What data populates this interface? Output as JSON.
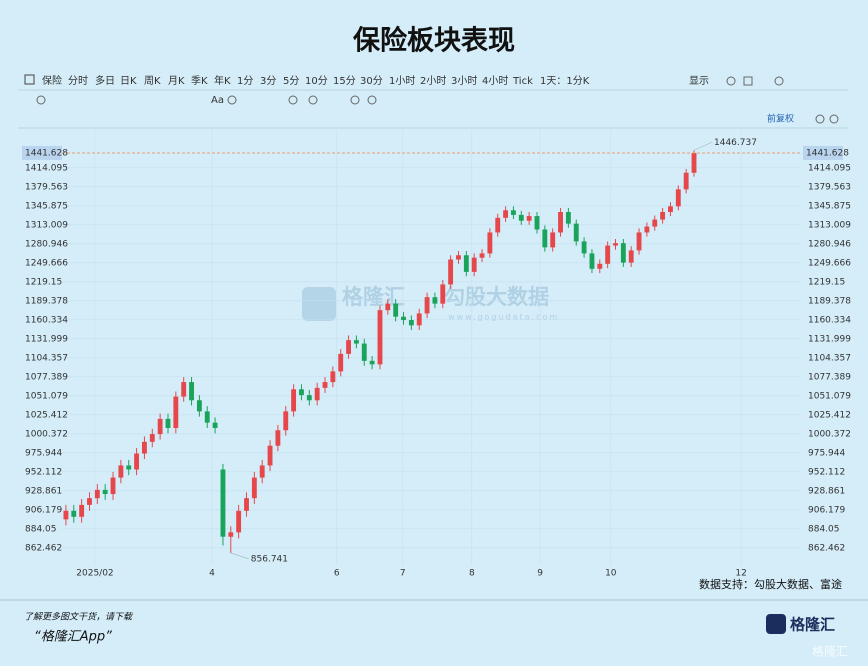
{
  "title": "保险板块表现",
  "toolbar": [
    "保险",
    "分时",
    "多日",
    "日K",
    "周K",
    "月K",
    "季K",
    "年K",
    "1分",
    "3分",
    "5分",
    "10分",
    "15分",
    "30分",
    "1小时",
    "2小时",
    "3小时",
    "4小时",
    "Tick",
    "1天：1分K"
  ],
  "toolbar_right": "显示",
  "toolbar2_text": "Aa",
  "adjust_label": "前复权",
  "watermark": {
    "brand": "格隆汇",
    "sub": "勾股大数据",
    "url": "www.gogudata.com"
  },
  "source": "数据支持：勾股大数据、富途",
  "footer": {
    "line1": "了解更多图文干货，请下载",
    "line2": "“格隆汇App”",
    "logo": "格隆汇",
    "corner": "格隆汇"
  },
  "chart_data": {
    "type": "candlestick",
    "log_scale": true,
    "grid": true,
    "up_color": "#e5474b",
    "down_color": "#1aa35a",
    "price_line_color": "#e8a070",
    "current_price": 1441.628,
    "annotations": [
      {
        "text": "1446.737",
        "index": 80
      },
      {
        "text": "856.741",
        "index": 21
      }
    ],
    "xlim": [
      -0.5,
      93.5
    ],
    "xticks": [
      {
        "value": 3.7,
        "label": "2025/02"
      },
      {
        "value": 18.6,
        "label": "4"
      },
      {
        "value": 34.5,
        "label": "6"
      },
      {
        "value": 42.9,
        "label": "7"
      },
      {
        "value": 51.7,
        "label": "8"
      },
      {
        "value": 60.4,
        "label": "9"
      },
      {
        "value": 69.4,
        "label": "10"
      },
      {
        "value": 86,
        "label": "12"
      }
    ],
    "ylim": [
      850,
      1470
    ],
    "yticks": [
      862.462,
      884.05,
      906.179,
      928.861,
      952.112,
      975.944,
      1000.372,
      1025.412,
      1051.079,
      1077.389,
      1104.357,
      1131.999,
      1160.334,
      1189.378,
      1219.15,
      1249.666,
      1280.946,
      1313.009,
      1345.875,
      1379.563,
      1414.095
    ],
    "open": [
      895,
      905,
      898,
      912,
      920,
      930,
      925,
      945,
      960,
      955,
      975,
      990,
      1000,
      1020,
      1008,
      1050,
      1070,
      1045,
      1030,
      1015,
      955,
      875,
      880,
      905,
      920,
      945,
      960,
      985,
      1005,
      1030,
      1060,
      1052,
      1045,
      1062,
      1070,
      1085,
      1110,
      1130,
      1125,
      1100,
      1095,
      1175,
      1185,
      1165,
      1160,
      1152,
      1170,
      1195,
      1185,
      1215,
      1255,
      1262,
      1235,
      1258,
      1265,
      1300,
      1325,
      1338,
      1330,
      1320,
      1328,
      1305,
      1275,
      1300,
      1335,
      1315,
      1285,
      1265,
      1240,
      1248,
      1278,
      1282,
      1250,
      1270,
      1300,
      1310,
      1322,
      1335,
      1345,
      1375,
      1405
    ],
    "high": [
      912,
      912,
      919,
      927,
      937,
      937,
      952,
      967,
      967,
      982,
      997,
      1007,
      1027,
      1027,
      1057,
      1077,
      1077,
      1052,
      1037,
      1022,
      962,
      887,
      912,
      927,
      952,
      967,
      992,
      1012,
      1037,
      1067,
      1067,
      1059,
      1069,
      1077,
      1092,
      1117,
      1137,
      1137,
      1132,
      1107,
      1182,
      1192,
      1192,
      1172,
      1167,
      1177,
      1202,
      1202,
      1222,
      1262,
      1269,
      1269,
      1265,
      1272,
      1307,
      1332,
      1345,
      1345,
      1337,
      1335,
      1335,
      1312,
      1307,
      1342,
      1342,
      1322,
      1292,
      1272,
      1255,
      1285,
      1289,
      1289,
      1277,
      1307,
      1317,
      1329,
      1342,
      1352,
      1382,
      1412,
      1446.737
    ],
    "low": [
      888,
      891,
      891,
      905,
      913,
      918,
      918,
      938,
      948,
      948,
      968,
      983,
      993,
      1001,
      1001,
      1043,
      1038,
      1023,
      1008,
      1001,
      865,
      856.741,
      873,
      898,
      913,
      938,
      953,
      978,
      998,
      1023,
      1045,
      1038,
      1038,
      1055,
      1063,
      1078,
      1103,
      1118,
      1093,
      1088,
      1088,
      1168,
      1158,
      1153,
      1145,
      1145,
      1163,
      1178,
      1178,
      1208,
      1248,
      1228,
      1228,
      1251,
      1258,
      1293,
      1318,
      1323,
      1313,
      1313,
      1298,
      1268,
      1268,
      1293,
      1308,
      1278,
      1258,
      1233,
      1233,
      1241,
      1271,
      1243,
      1243,
      1263,
      1293,
      1303,
      1315,
      1328,
      1338,
      1368,
      1398
    ],
    "close": [
      905,
      898,
      912,
      920,
      930,
      925,
      945,
      960,
      955,
      975,
      990,
      1000,
      1020,
      1008,
      1050,
      1070,
      1045,
      1030,
      1015,
      1008,
      875,
      880,
      905,
      920,
      945,
      960,
      985,
      1005,
      1030,
      1060,
      1052,
      1045,
      1062,
      1070,
      1085,
      1110,
      1130,
      1125,
      1100,
      1095,
      1175,
      1185,
      1165,
      1160,
      1152,
      1170,
      1195,
      1185,
      1215,
      1255,
      1262,
      1235,
      1258,
      1265,
      1300,
      1325,
      1338,
      1330,
      1320,
      1328,
      1305,
      1275,
      1300,
      1335,
      1315,
      1285,
      1265,
      1240,
      1248,
      1278,
      1282,
      1250,
      1270,
      1300,
      1310,
      1322,
      1335,
      1345,
      1375,
      1405,
      1441.628
    ]
  }
}
